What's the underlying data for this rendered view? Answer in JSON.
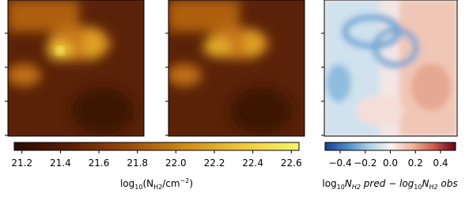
{
  "chart_data": [
    {
      "type": "colorbar",
      "label_parts": [
        "log",
        "10",
        "(N",
        "H2",
        "/cm",
        "−2",
        ")"
      ],
      "xlim": [
        21.16,
        22.64
      ],
      "xticks": [
        21.2,
        21.4,
        21.6,
        21.8,
        {
          "value": 22,
          "label": "22.0"
        },
        22.2,
        22.4,
        22.6
      ],
      "colors": [
        "#2a0a02",
        "#5c1e06",
        "#9a4a0c",
        "#d08a18",
        "#f0c83a",
        "#f6f66a"
      ]
    },
    {
      "type": "colorbar",
      "label_parts": [
        "log",
        "10",
        "N",
        "H2",
        " pred − log",
        "10",
        "N",
        "H2",
        " obs"
      ],
      "xlim": [
        -0.52,
        0.52
      ],
      "xticks": [
        {
          "value": -0.4,
          "label": "−0.4"
        },
        {
          "value": -0.2,
          "label": "−0.2"
        },
        {
          "value": 0,
          "label": "0.0"
        },
        0.2,
        0.4
      ],
      "colors": [
        "#1b3f8c",
        "#4a8ac4",
        "#a9cfe4",
        "#f7f3f0",
        "#f0b49a",
        "#cc5a4a",
        "#6a0018"
      ]
    }
  ]
}
